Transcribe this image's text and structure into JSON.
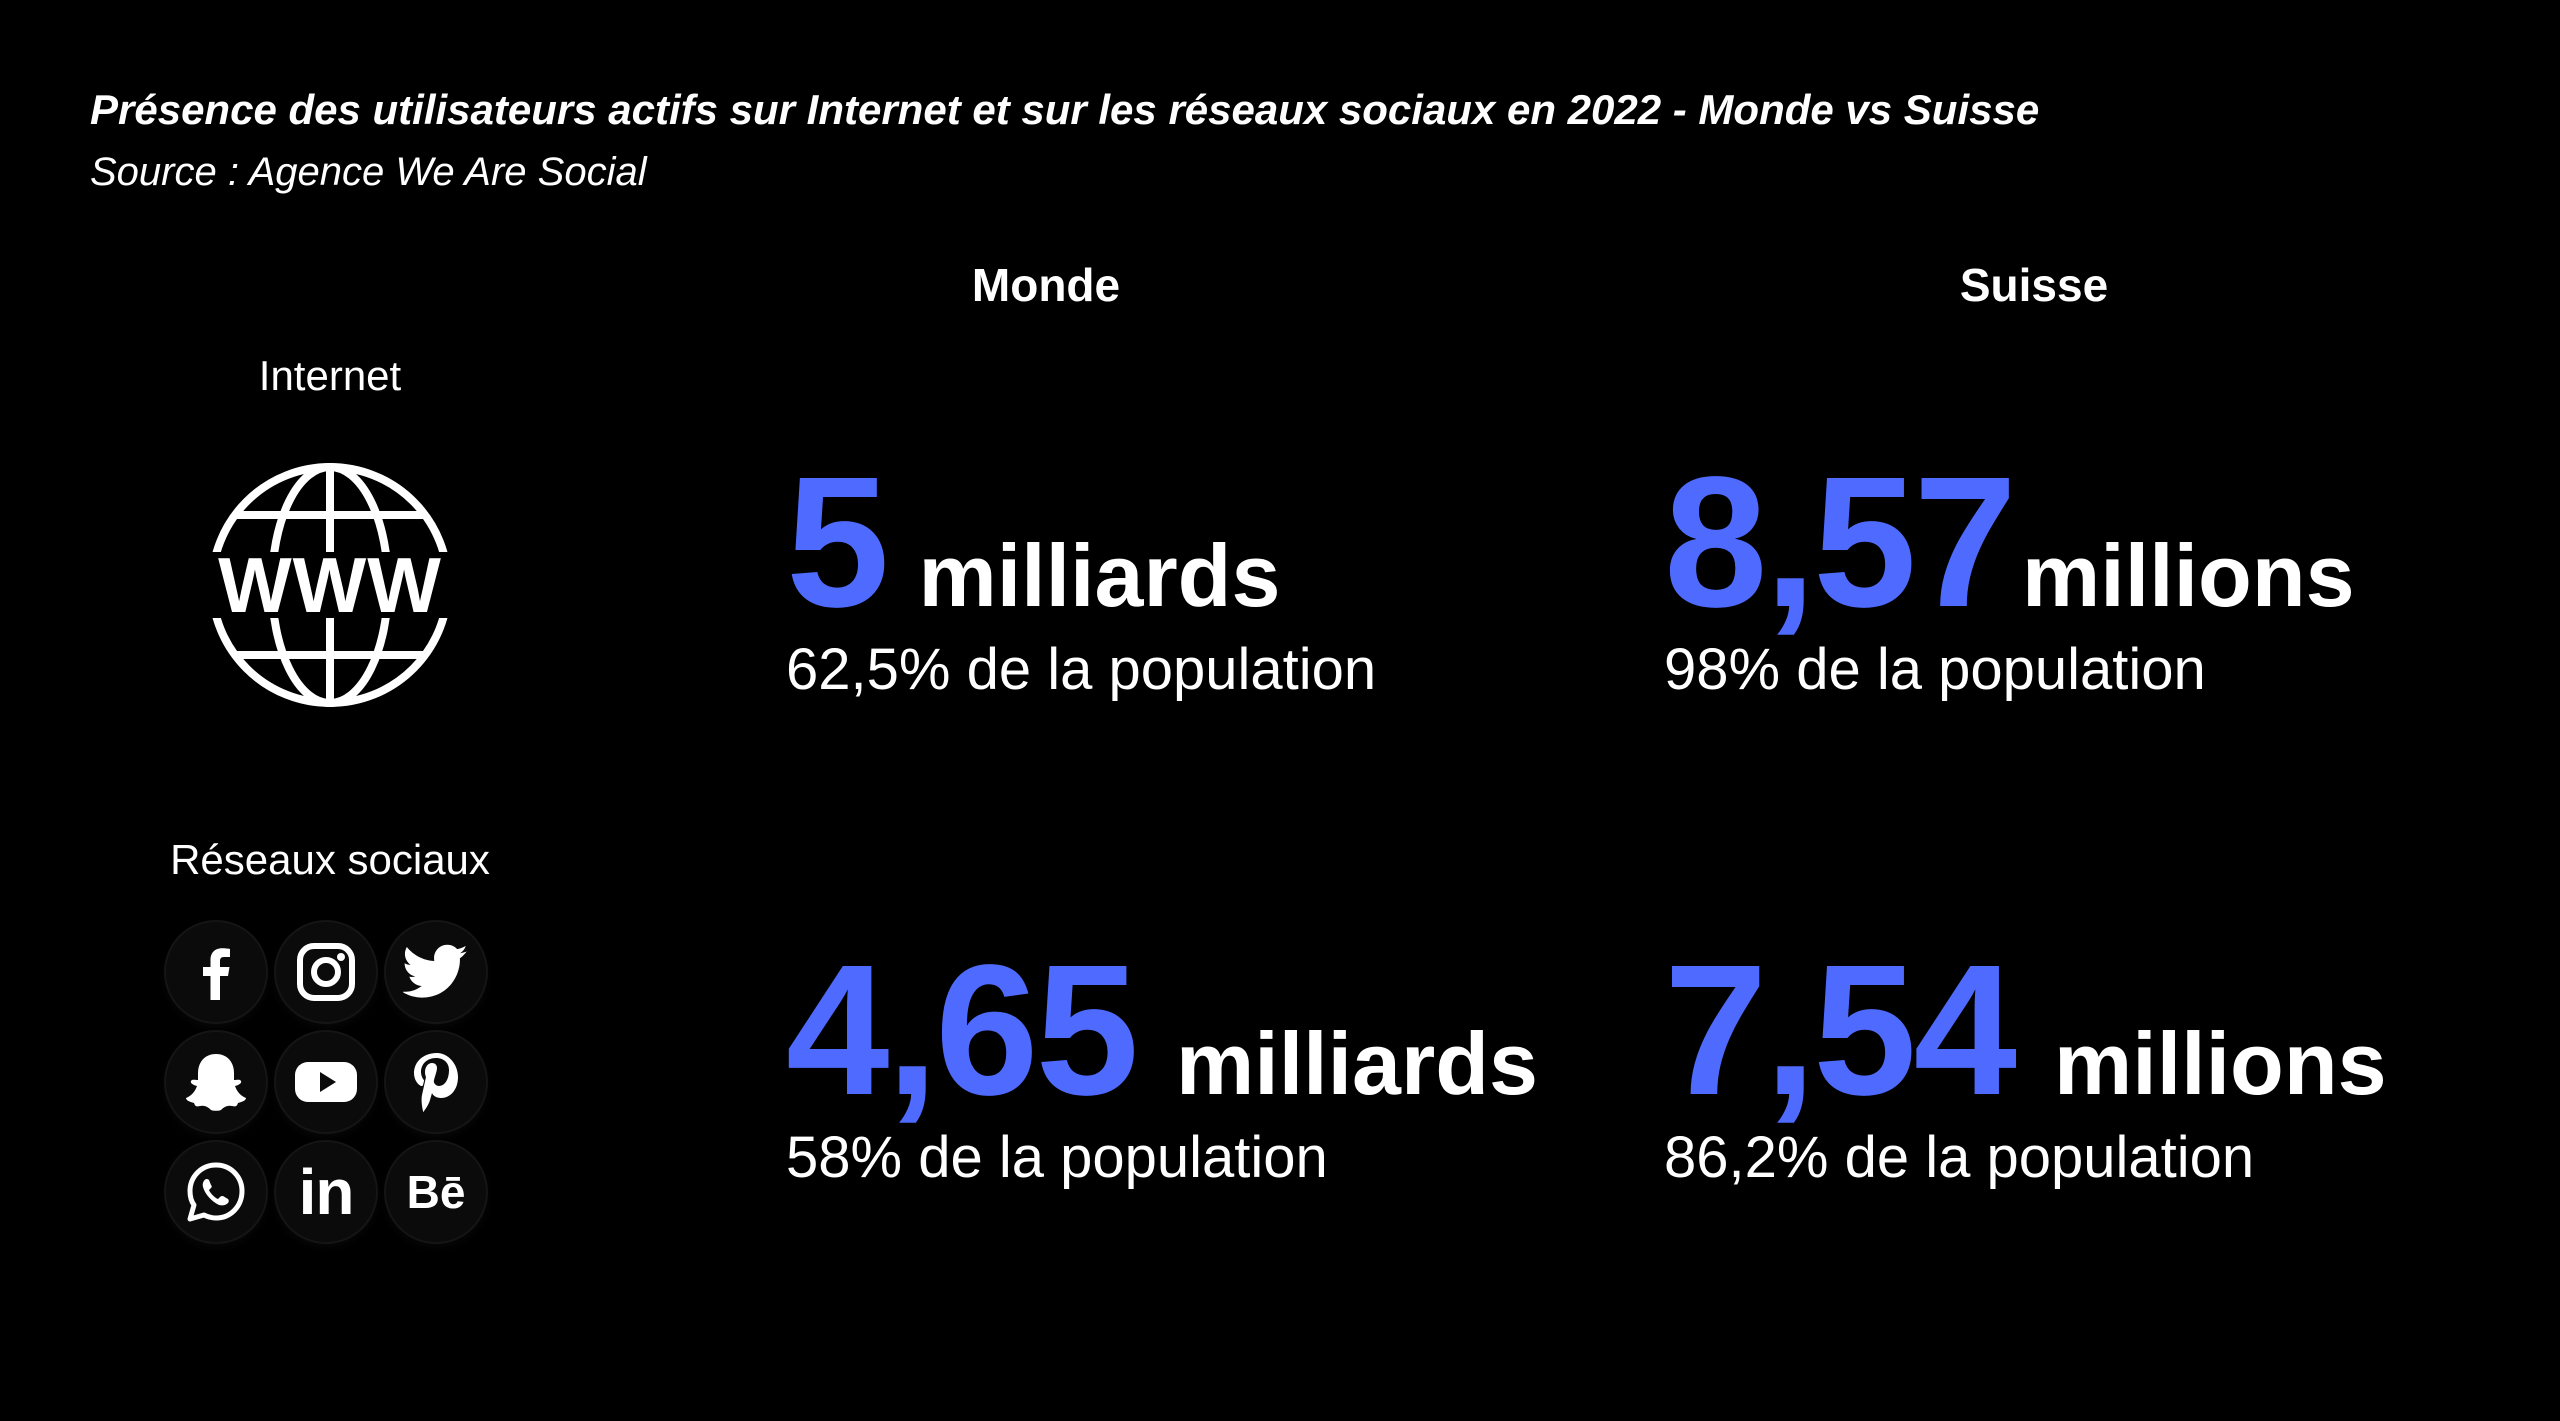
{
  "header": {
    "title": "Présence des utilisateurs actifs sur Internet et sur les réseaux sociaux en 2022 - Monde vs Suisse",
    "source": "Source : Agence We Are Social"
  },
  "columns": {
    "world": "Monde",
    "switzerland": "Suisse"
  },
  "rows": {
    "internet": "Internet",
    "social": "Réseaux sociaux"
  },
  "stats": {
    "internet_world": {
      "value": "5",
      "unit": "milliards",
      "pct": "62,5% de la population"
    },
    "internet_switzerland": {
      "value": "8,57",
      "unit": "millions",
      "pct": "98% de la population"
    },
    "social_world": {
      "value": "4,65",
      "unit": "milliards",
      "pct": "58% de la population"
    },
    "social_switzerland": {
      "value": "7,54",
      "unit": "millions",
      "pct": "86,2% de la population"
    }
  },
  "icons": {
    "internet": "www-globe-icon",
    "social": [
      "facebook-icon",
      "instagram-icon",
      "twitter-icon",
      "snapchat-icon",
      "youtube-icon",
      "pinterest-icon",
      "whatsapp-icon",
      "linkedin-icon",
      "behance-icon"
    ],
    "linkedin_text": "in",
    "behance_text": "Bē"
  },
  "colors": {
    "background": "#000000",
    "text": "#ffffff",
    "accent": "#4f6bff"
  }
}
